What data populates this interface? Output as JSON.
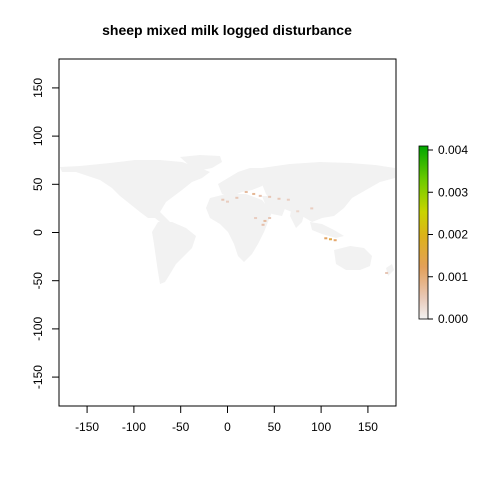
{
  "title": "sheep mixed milk logged disturbance",
  "x_ticks": [
    "-150",
    "-100",
    "-50",
    "0",
    "50",
    "100",
    "150"
  ],
  "y_ticks": [
    "150",
    "100",
    "50",
    "0",
    "-50",
    "-100",
    "-150"
  ],
  "legend": {
    "ticks": [
      "0.004",
      "0.003",
      "0.002",
      "0.001",
      "0.000"
    ],
    "colors": [
      "#f2f2f2",
      "#e6c0ad",
      "#e3a05a",
      "#d8b51e",
      "#c8d400",
      "#7ccd00",
      "#00a600"
    ]
  },
  "land_color": "#f2f2f2",
  "chart_data": {
    "type": "heatmap",
    "title": "sheep mixed milk logged disturbance",
    "xlim": [
      -180,
      180
    ],
    "ylim": [
      -180,
      180
    ],
    "value_range": [
      0,
      0.0041
    ],
    "hotspots": [
      {
        "lon": 20,
        "lat": 42,
        "value": 0.0008
      },
      {
        "lon": 28,
        "lat": 40,
        "value": 0.0009
      },
      {
        "lon": 35,
        "lat": 38,
        "value": 0.0007
      },
      {
        "lon": 45,
        "lat": 37,
        "value": 0.0006
      },
      {
        "lon": 55,
        "lat": 35,
        "value": 0.0006
      },
      {
        "lon": 65,
        "lat": 34,
        "value": 0.0005
      },
      {
        "lon": 10,
        "lat": 36,
        "value": 0.0006
      },
      {
        "lon": 0,
        "lat": 32,
        "value": 0.0005
      },
      {
        "lon": -5,
        "lat": 34,
        "value": 0.0006
      },
      {
        "lon": 38,
        "lat": 8,
        "value": 0.0007
      },
      {
        "lon": 40,
        "lat": 12,
        "value": 0.0008
      },
      {
        "lon": 45,
        "lat": 15,
        "value": 0.0006
      },
      {
        "lon": 30,
        "lat": 15,
        "value": 0.0005
      },
      {
        "lon": 105,
        "lat": -6,
        "value": 0.0013
      },
      {
        "lon": 110,
        "lat": -7,
        "value": 0.0016
      },
      {
        "lon": 115,
        "lat": -8,
        "value": 0.0012
      },
      {
        "lon": 170,
        "lat": -42,
        "value": 0.0006
      },
      {
        "lon": 90,
        "lat": 25,
        "value": 0.0005
      },
      {
        "lon": 75,
        "lat": 22,
        "value": 0.0004
      }
    ]
  }
}
